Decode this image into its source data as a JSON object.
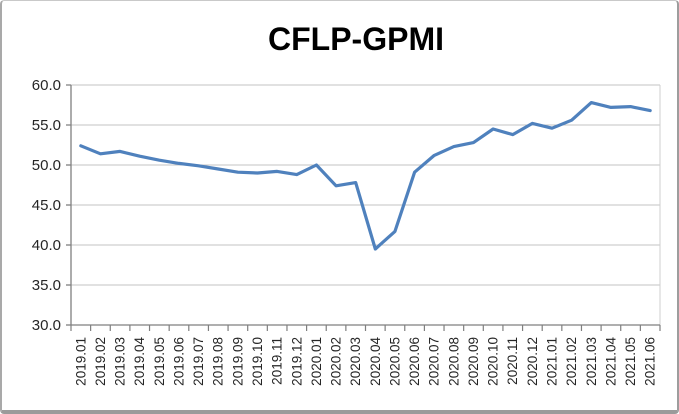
{
  "frame": {
    "background": "#ffffff",
    "border_color": "#9d9d9d"
  },
  "chart_data": {
    "type": "line",
    "title": "CFLP-GPMI",
    "categories": [
      "2019.01",
      "2019.02",
      "2019.03",
      "2019.04",
      "2019.05",
      "2019.06",
      "2019.07",
      "2019.08",
      "2019.09",
      "2019.10",
      "2019.11",
      "2019.12",
      "2020.01",
      "2020.02",
      "2020.03",
      "2020.04",
      "2020.05",
      "2020.06",
      "2020.07",
      "2020.08",
      "2020.09",
      "2020.10",
      "2020.11",
      "2020.12",
      "2021.01",
      "2021.02",
      "2021.03",
      "2021.04",
      "2021.05",
      "2021.06"
    ],
    "series": [
      {
        "name": "CFLP-GPMI",
        "color": "#4f81bd",
        "values": [
          52.4,
          51.4,
          51.7,
          51.1,
          50.6,
          50.2,
          49.9,
          49.5,
          49.1,
          49.0,
          49.2,
          48.8,
          50.0,
          47.4,
          47.8,
          39.5,
          41.7,
          49.1,
          51.2,
          52.3,
          52.8,
          54.5,
          53.8,
          55.2,
          54.6,
          55.6,
          57.8,
          57.2,
          57.3,
          56.8
        ]
      }
    ],
    "xlabel": "",
    "ylabel": "",
    "ylim": [
      30,
      60
    ],
    "ytick_step": 5,
    "ytick_labels": [
      "30.0",
      "35.0",
      "40.0",
      "45.0",
      "50.0",
      "55.0",
      "60.0"
    ],
    "grid": "horizontal",
    "legend_position": "none",
    "x_labels_rotation": 90,
    "colors": {
      "gridline": "#c3c3c3",
      "axis": "#7f7f7f",
      "tick": "#7f7f7f",
      "axis_label_text": "#262626",
      "title_text": "#000000",
      "plot_right_border": "#cfcfcf"
    }
  }
}
